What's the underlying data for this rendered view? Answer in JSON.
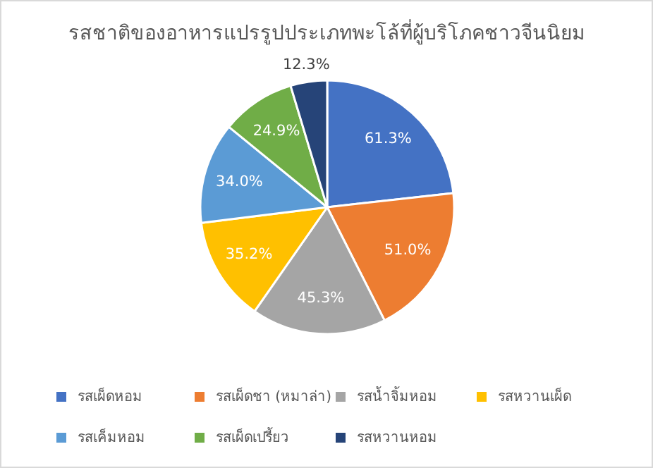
{
  "chart_data": {
    "type": "pie",
    "title": "รสชาติของอาหารแปรรูปประเภทพะโล้ที่ผู้บริโภคชาวจีนนิยม",
    "categories": [
      "รสเผ็ดหอม",
      "รสเผ็ดชา (หมาล่า)",
      "รสน้ำจิ้มหอม",
      "รสหวานเผ็ด",
      "รสเค็มหอม",
      "รสเผ็ดเปรี้ยว",
      "รสหวานหอม"
    ],
    "values": [
      61.3,
      51.0,
      45.3,
      35.2,
      34.0,
      24.9,
      12.3
    ],
    "value_labels": [
      "61.3%",
      "51.0%",
      "45.3%",
      "35.2%",
      "34.0%",
      "24.9%",
      "12.3%"
    ],
    "colors": [
      "#4472c4",
      "#ed7d31",
      "#a5a5a5",
      "#ffc000",
      "#5b9bd5",
      "#70ad47",
      "#264478"
    ],
    "legend": "bottom"
  }
}
